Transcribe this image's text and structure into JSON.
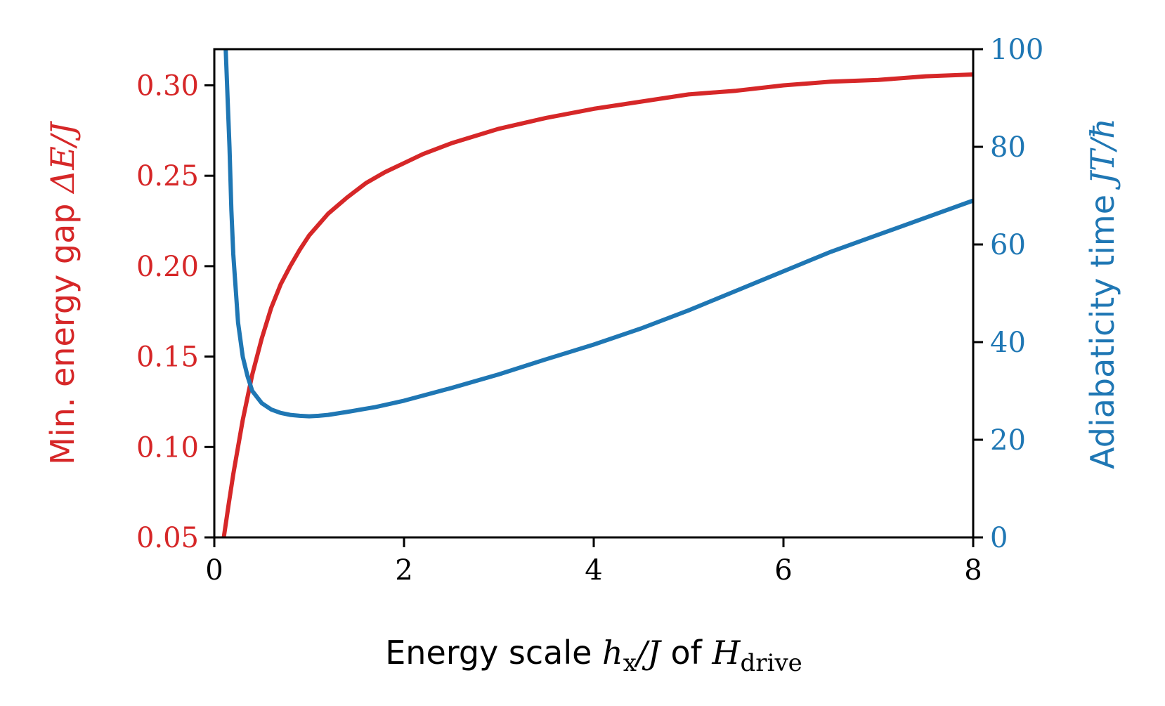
{
  "chart_data": {
    "type": "line",
    "colors": {
      "left": "#d62728",
      "right": "#1f77b4",
      "axes": "#000000"
    },
    "x_axis": {
      "label_prefix": "Energy scale ",
      "label_math_a": "h",
      "label_math_a_sub": "x",
      "label_math_b": "/J",
      "label_mid": " of ",
      "label_math_c": "H",
      "label_math_c_sub": "drive",
      "lim": [
        0,
        8
      ],
      "ticks": [
        0,
        2,
        4,
        6,
        8
      ],
      "tick_labels": [
        "0",
        "2",
        "4",
        "6",
        "8"
      ]
    },
    "y_left": {
      "label_prefix": "Min. energy gap ",
      "label_math": "ΔE/J",
      "lim": [
        0.05,
        0.32
      ],
      "ticks": [
        0.05,
        0.1,
        0.15,
        0.2,
        0.25,
        0.3
      ],
      "tick_labels": [
        "0.05",
        "0.10",
        "0.15",
        "0.20",
        "0.25",
        "0.30"
      ]
    },
    "y_right": {
      "label_prefix": "Adiabaticity time ",
      "label_math": "JT/ħ",
      "lim": [
        0,
        100
      ],
      "ticks": [
        0,
        20,
        40,
        60,
        80,
        100
      ],
      "tick_labels": [
        "0",
        "20",
        "40",
        "60",
        "80",
        "100"
      ]
    },
    "series": [
      {
        "axis": "left",
        "x": [
          0.05,
          0.1,
          0.15,
          0.2,
          0.3,
          0.4,
          0.5,
          0.6,
          0.7,
          0.8,
          0.9,
          1.0,
          1.2,
          1.4,
          1.6,
          1.8,
          2.0,
          2.2,
          2.5,
          3.0,
          3.5,
          4.0,
          4.5,
          5.0,
          5.5,
          6.0,
          6.5,
          7.0,
          7.5,
          8.0
        ],
        "values": [
          0.03,
          0.05,
          0.068,
          0.085,
          0.115,
          0.14,
          0.16,
          0.177,
          0.19,
          0.2,
          0.209,
          0.217,
          0.229,
          0.238,
          0.246,
          0.252,
          0.257,
          0.262,
          0.268,
          0.276,
          0.282,
          0.287,
          0.291,
          0.295,
          0.297,
          0.3,
          0.302,
          0.303,
          0.305,
          0.306
        ]
      },
      {
        "axis": "right",
        "x": [
          0.12,
          0.14,
          0.16,
          0.18,
          0.2,
          0.25,
          0.3,
          0.35,
          0.4,
          0.5,
          0.6,
          0.7,
          0.8,
          0.9,
          1.0,
          1.1,
          1.2,
          1.4,
          1.7,
          2.0,
          2.5,
          3.0,
          3.5,
          4.0,
          4.5,
          5.0,
          5.5,
          6.0,
          6.5,
          7.0,
          7.5,
          8.0
        ],
        "values": [
          100,
          90,
          80,
          67,
          58,
          44,
          37,
          33,
          30,
          27.5,
          26.2,
          25.5,
          25.1,
          24.9,
          24.8,
          24.9,
          25.1,
          25.7,
          26.7,
          28,
          30.6,
          33.4,
          36.5,
          39.5,
          42.8,
          46.5,
          50.5,
          54.5,
          58.5,
          62,
          65.5,
          69
        ]
      }
    ]
  }
}
